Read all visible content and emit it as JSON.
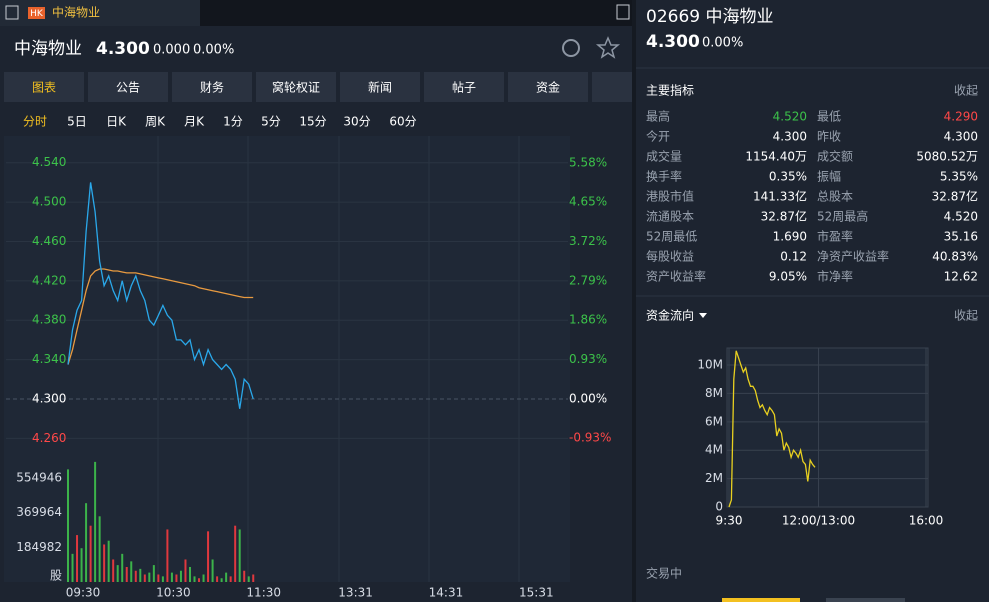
{
  "tab": {
    "badge": "HK",
    "name": "中海物业"
  },
  "header": {
    "name": "中海物业",
    "price": "4.300",
    "change": "0.000",
    "pct": "0.00%"
  },
  "tabs": [
    "图表",
    "公告",
    "财务",
    "窝轮权证",
    "新闻",
    "帖子",
    "资金"
  ],
  "periods": [
    "分时",
    "5日",
    "日K",
    "周K",
    "月K",
    "1分",
    "5分",
    "15分",
    "30分",
    "60分"
  ],
  "quote": {
    "code_name": "02669 中海物业",
    "price": "4.300",
    "pct": "0.00%"
  },
  "indicators": {
    "title": "主要指标",
    "collapse": "收起"
  },
  "rows": [
    [
      "最高",
      "4.520",
      "最低",
      "4.290"
    ],
    [
      "今开",
      "4.300",
      "昨收",
      "4.300"
    ],
    [
      "成交量",
      "1154.40万",
      "成交额",
      "5080.52万"
    ],
    [
      "换手率",
      "0.35%",
      "振幅",
      "5.35%"
    ],
    [
      "港股市值",
      "141.33亿",
      "总股本",
      "32.87亿"
    ],
    [
      "流通股本",
      "32.87亿",
      "52周最高",
      "4.520"
    ],
    [
      "52周最低",
      "1.690",
      "市盈率",
      "35.16"
    ],
    [
      "每股收益",
      "0.12",
      "净资产收益率",
      "40.83%"
    ],
    [
      "资产收益率",
      "9.05%",
      "市净率",
      "12.62"
    ]
  ],
  "fund_flow": {
    "title": "资金流向",
    "collapse": "收起"
  },
  "status": "交易中",
  "chart_data": [
    {
      "type": "line",
      "x": [
        0,
        3,
        6,
        9,
        12,
        15,
        18,
        21,
        24,
        27,
        30,
        33,
        36,
        39,
        42,
        45,
        48,
        51,
        54,
        57,
        60,
        63,
        66,
        69,
        72,
        75,
        78,
        81,
        84,
        87,
        90,
        93,
        96,
        99,
        102,
        105,
        108,
        111,
        114,
        117,
        120,
        123
      ],
      "xlim": [
        0,
        330
      ],
      "ylim": [
        4.24,
        4.56
      ],
      "y2lim": [
        -1.4,
        6.05
      ],
      "grid": true,
      "yticks": [
        {
          "value": 4.54,
          "label": "4.540"
        },
        {
          "value": 4.5,
          "label": "4.500"
        },
        {
          "value": 4.46,
          "label": "4.460"
        },
        {
          "value": 4.42,
          "label": "4.420"
        },
        {
          "value": 4.38,
          "label": "4.380"
        },
        {
          "value": 4.34,
          "label": "4.340"
        },
        {
          "value": 4.3,
          "label": "4.300"
        },
        {
          "value": 4.26,
          "label": "4.260"
        }
      ],
      "y2ticks": [
        {
          "value": 5.58,
          "label": "5.58%"
        },
        {
          "value": 4.65,
          "label": "4.65%"
        },
        {
          "value": 3.72,
          "label": "3.72%"
        },
        {
          "value": 2.79,
          "label": "2.79%"
        },
        {
          "value": 1.86,
          "label": "1.86%"
        },
        {
          "value": 0.93,
          "label": "0.93%"
        },
        {
          "value": 0,
          "label": "0.00%"
        },
        {
          "value": -0.93,
          "label": "-0.93%"
        }
      ],
      "series": [
        {
          "color": "#2aa8ea",
          "values": [
            4.335,
            4.37,
            4.39,
            4.4,
            4.47,
            4.52,
            4.49,
            4.44,
            4.415,
            4.425,
            4.41,
            4.4,
            4.42,
            4.4,
            4.415,
            4.425,
            4.41,
            4.4,
            4.38,
            4.375,
            4.385,
            4.395,
            4.385,
            4.38,
            4.36,
            4.36,
            4.355,
            4.36,
            4.34,
            4.35,
            4.335,
            4.35,
            4.34,
            4.335,
            4.33,
            4.335,
            4.33,
            4.32,
            4.29,
            4.32,
            4.315,
            4.3
          ]
        },
        {
          "color": "#e89a40",
          "values": [
            4.335,
            4.35,
            4.37,
            4.39,
            4.41,
            4.425,
            4.43,
            4.432,
            4.432,
            4.431,
            4.43,
            4.43,
            4.429,
            4.428,
            4.428,
            4.428,
            4.427,
            4.426,
            4.425,
            4.424,
            4.423,
            4.422,
            4.421,
            4.42,
            4.419,
            4.418,
            4.417,
            4.416,
            4.415,
            4.413,
            4.412,
            4.411,
            4.41,
            4.409,
            4.408,
            4.407,
            4.406,
            4.405,
            4.404,
            4.403,
            4.403,
            4.403
          ]
        }
      ]
    },
    {
      "type": "bar",
      "x": [
        0,
        3,
        6,
        9,
        12,
        15,
        18,
        21,
        24,
        27,
        30,
        33,
        36,
        39,
        42,
        45,
        48,
        51,
        54,
        57,
        60,
        63,
        66,
        69,
        72,
        75,
        78,
        81,
        84,
        87,
        90,
        93,
        96,
        99,
        102,
        105,
        108,
        111,
        114,
        117,
        120,
        123
      ],
      "xlim": [
        0,
        330
      ],
      "ylim": [
        0,
        650000
      ],
      "yticks": [
        {
          "value": 0,
          "label": "股"
        },
        184982,
        369964,
        554946
      ],
      "xticks": [
        {
          "value": 0,
          "label": "09:30"
        },
        {
          "value": 60,
          "label": "10:30"
        },
        {
          "value": 120,
          "label": "11:30"
        },
        {
          "value": 181,
          "label": "13:31"
        },
        {
          "value": 241,
          "label": "14:31"
        },
        {
          "value": 301,
          "label": "15:31"
        }
      ],
      "values": [
        600000,
        150000,
        250000,
        180000,
        420000,
        300000,
        640000,
        350000,
        200000,
        220000,
        120000,
        90000,
        150000,
        80000,
        110000,
        60000,
        70000,
        40000,
        50000,
        90000,
        40000,
        30000,
        280000,
        50000,
        40000,
        60000,
        120000,
        80000,
        30000,
        20000,
        40000,
        270000,
        120000,
        30000,
        20000,
        50000,
        30000,
        300000,
        280000,
        60000,
        30000,
        40000
      ],
      "colors": [
        "#3cb34a",
        "#3cb34a",
        "#e0383e",
        "#3cb34a",
        "#3cb34a",
        "#e0383e",
        "#3cb34a",
        "#3cb34a",
        "#e0383e",
        "#3cb34a",
        "#e0383e",
        "#3cb34a",
        "#3cb34a",
        "#e0383e",
        "#3cb34a",
        "#e0383e",
        "#3cb34a",
        "#e0383e",
        "#3cb34a",
        "#3cb34a",
        "#e0383e",
        "#3cb34a",
        "#e0383e",
        "#3cb34a",
        "#e0383e",
        "#3cb34a",
        "#e0383e",
        "#3cb34a",
        "#3cb34a",
        "#e0383e",
        "#3cb34a",
        "#e0383e",
        "#3cb34a",
        "#e0383e",
        "#3cb34a",
        "#3cb34a",
        "#e0383e",
        "#e0383e",
        "#3cb34a",
        "#e0383e",
        "#3cb34a",
        "#e0383e"
      ]
    },
    {
      "type": "line",
      "x": [
        0,
        4,
        8,
        12,
        16,
        20,
        24,
        28,
        32,
        36,
        40,
        44,
        48,
        52,
        56,
        60,
        64,
        68,
        72,
        76,
        80,
        84,
        88,
        92,
        96,
        100,
        104,
        108,
        112,
        116,
        120,
        124,
        128,
        132,
        136,
        140,
        144
      ],
      "xlim": [
        0,
        330
      ],
      "ylim": [
        0,
        11.2
      ],
      "grid": true,
      "yticks": [
        0,
        {
          "value": 2,
          "label": "2M"
        },
        {
          "value": 4,
          "label": "4M"
        },
        {
          "value": 6,
          "label": "6M"
        },
        {
          "value": 8,
          "label": "8M"
        },
        {
          "value": 10,
          "label": "10M"
        }
      ],
      "xticks": [
        {
          "value": 0,
          "label": "9:30"
        },
        {
          "value": 150,
          "label": "12:00/13:00"
        },
        {
          "value": 330,
          "label": "16:00"
        }
      ],
      "series": [
        {
          "color": "#e8d020",
          "values": [
            0,
            0.5,
            9,
            11,
            10.5,
            10,
            9.5,
            9.8,
            9,
            8.5,
            8.5,
            8.2,
            7.5,
            7,
            7.2,
            6.8,
            6.5,
            7,
            6.8,
            6.5,
            5,
            5.5,
            5.2,
            4,
            4.5,
            4.2,
            3.5,
            4,
            3.8,
            3.5,
            4,
            3.2,
            3,
            1.8,
            3.3,
            3,
            2.8
          ]
        }
      ]
    }
  ]
}
